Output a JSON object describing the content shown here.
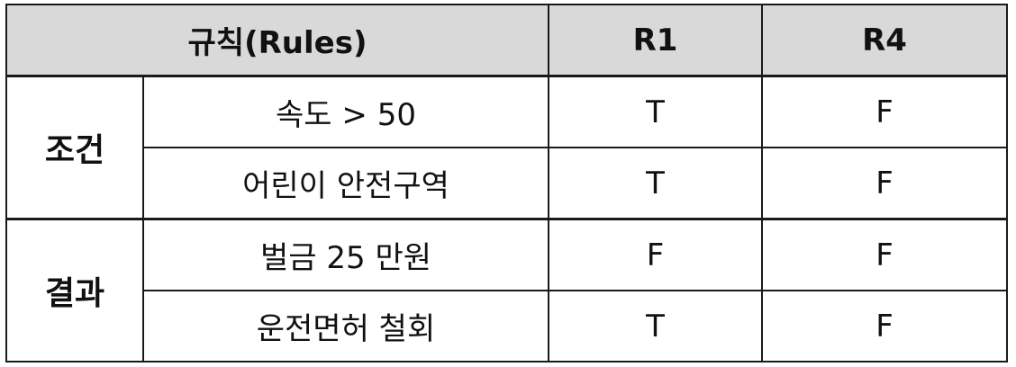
{
  "header": {
    "rules_label": "규칙(Rules)",
    "columns": [
      "R1",
      "R4"
    ]
  },
  "groups": [
    {
      "label": "조건",
      "rows": [
        {
          "label": "속도 > 50",
          "values": [
            "T",
            "F"
          ]
        },
        {
          "label": "어린이 안전구역",
          "values": [
            "T",
            "F"
          ]
        }
      ]
    },
    {
      "label": "결과",
      "rows": [
        {
          "label": "벌금 25 만원",
          "values": [
            "F",
            "F"
          ]
        },
        {
          "label": "운전면허 철회",
          "values": [
            "T",
            "F"
          ]
        }
      ]
    }
  ]
}
